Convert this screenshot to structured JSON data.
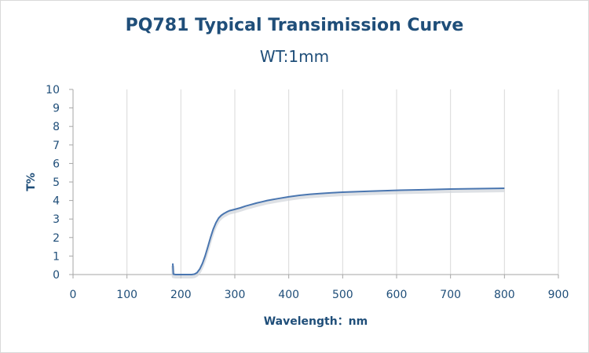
{
  "chart_data": {
    "type": "line",
    "title": "PQ781 Typical Transimission Curve",
    "subtitle": "WT:1mm",
    "xlabel": "Wavelength：nm",
    "ylabel": "T%",
    "xlim": [
      0,
      900
    ],
    "ylim": [
      0,
      10
    ],
    "x_ticks": [
      "0",
      "100",
      "200",
      "300",
      "400",
      "500",
      "600",
      "700",
      "800",
      "900"
    ],
    "y_ticks": [
      "0",
      "1",
      "2",
      "3",
      "4",
      "5",
      "6",
      "7",
      "8",
      "9",
      "10"
    ],
    "grid": "vertical",
    "legend": "none",
    "line_color": "#4a76b0",
    "series": [
      {
        "x": [
          185,
          186,
          190,
          200,
          210,
          220,
          225,
          230,
          235,
          240,
          245,
          250,
          255,
          260,
          265,
          270,
          275,
          280,
          285,
          290,
          300,
          310,
          320,
          330,
          340,
          350,
          360,
          370,
          380,
          400,
          420,
          440,
          460,
          480,
          500,
          550,
          600,
          650,
          700,
          750,
          800
        ],
        "y": [
          0.6,
          0.02,
          0.0,
          0.0,
          0.0,
          0.0,
          0.02,
          0.1,
          0.3,
          0.6,
          1.0,
          1.5,
          2.0,
          2.45,
          2.8,
          3.05,
          3.2,
          3.3,
          3.38,
          3.45,
          3.52,
          3.6,
          3.7,
          3.78,
          3.86,
          3.93,
          4.0,
          4.05,
          4.1,
          4.2,
          4.28,
          4.34,
          4.38,
          4.42,
          4.45,
          4.5,
          4.55,
          4.58,
          4.62,
          4.64,
          4.66
        ]
      }
    ]
  }
}
